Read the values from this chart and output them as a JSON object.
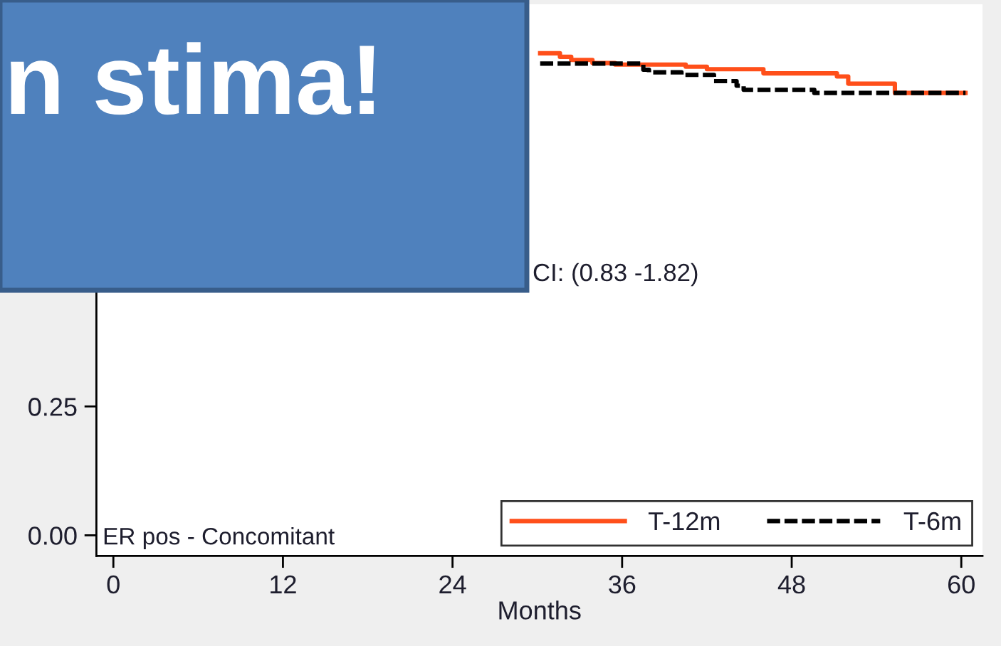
{
  "chart_data": {
    "type": "step",
    "xlabel": "Months",
    "annotations": [
      "CI: (0.83 -1.82)",
      "ER pos - Concomitant",
      "n stima!"
    ],
    "xlim": [
      -1.2,
      61.5
    ],
    "xticks": [
      0,
      12,
      24,
      36,
      48,
      60
    ],
    "ylim": [
      -0.04,
      1.03
    ],
    "yticks": [
      {
        "value": 0,
        "label": "0.00"
      },
      {
        "value": 0.25,
        "label": "0.25"
      }
    ],
    "legend": "bottom right",
    "series": [
      {
        "name": "T-12m",
        "color": "#ff4f1a",
        "line_style": "solid",
        "x": [
          30.2,
          31.6,
          32.4,
          33.9,
          35.5,
          40.5,
          42.0,
          46.0,
          51.2,
          52.0,
          55.3,
          60.3
        ],
        "values": [
          0.935,
          0.928,
          0.922,
          0.916,
          0.913,
          0.909,
          0.904,
          0.896,
          0.89,
          0.876,
          0.858,
          0.858
        ]
      },
      {
        "name": "T-6m",
        "color": "#000000",
        "line_style": "dashed",
        "x": [
          30.2,
          37.5,
          37.9,
          40.2,
          42.5,
          44.1,
          44.6,
          49.6,
          60.3
        ],
        "values": [
          0.915,
          0.903,
          0.898,
          0.893,
          0.881,
          0.872,
          0.864,
          0.858,
          0.858
        ]
      }
    ]
  }
}
